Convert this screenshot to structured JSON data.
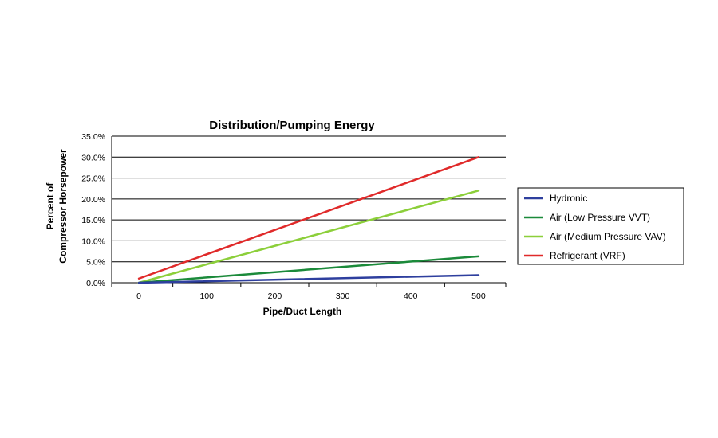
{
  "chart_data": {
    "type": "line",
    "title": "Distribution/Pumping Energy",
    "xlabel": "Pipe/Duct Length",
    "ylabel_line1": "Percent of",
    "ylabel_line2": "Compressor Horsepower",
    "x": [
      0,
      500
    ],
    "xticks": [
      "0",
      "100",
      "200",
      "300",
      "400",
      "500"
    ],
    "xlim": [
      -40,
      540
    ],
    "ylim": [
      0,
      35
    ],
    "yticks": [
      "0.0%",
      "5.0%",
      "10.0%",
      "15.0%",
      "20.0%",
      "25.0%",
      "30.0%",
      "35.0%"
    ],
    "grid": "horizontal",
    "legend_position": "right",
    "series": [
      {
        "name": "Hydronic",
        "color": "#2e3f9e",
        "values": [
          0.0,
          1.8
        ]
      },
      {
        "name": "Air (Low Pressure VVT)",
        "color": "#1b8a3a",
        "values": [
          0.0,
          6.3
        ]
      },
      {
        "name": "Air (Medium Pressure VAV)",
        "color": "#8ccf3a",
        "values": [
          0.0,
          22.0
        ]
      },
      {
        "name": "Refrigerant (VRF)",
        "color": "#e02a2a",
        "values": [
          1.0,
          30.0
        ]
      }
    ]
  }
}
